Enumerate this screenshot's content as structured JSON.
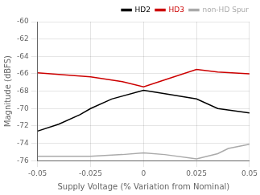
{
  "chart_data": {
    "type": "line",
    "xlabel": "Supply Voltage (% Variation from Nominal)",
    "ylabel": "Magnitude (dBFS)",
    "series": [
      {
        "name": "HD2",
        "color": "#000000",
        "x": [
          -0.05,
          -0.04,
          -0.03,
          -0.025,
          -0.015,
          0.0,
          0.01,
          0.025,
          0.035,
          0.05
        ],
        "values": [
          -72.6,
          -71.8,
          -70.7,
          -70.0,
          -68.9,
          -67.9,
          -68.3,
          -68.9,
          -70.0,
          -70.5
        ]
      },
      {
        "name": "HD3",
        "color": "#cc0000",
        "x": [
          -0.05,
          -0.025,
          -0.01,
          0.0,
          0.01,
          0.025,
          0.035,
          0.05
        ],
        "values": [
          -65.9,
          -66.35,
          -66.9,
          -67.5,
          -66.7,
          -65.5,
          -65.8,
          -66.0
        ]
      },
      {
        "name": "non-HD Spur",
        "color": "#aaaaaa",
        "x": [
          -0.05,
          -0.04,
          -0.025,
          -0.01,
          0.0,
          0.01,
          0.025,
          0.035,
          0.04,
          0.05
        ],
        "values": [
          -75.5,
          -75.5,
          -75.5,
          -75.3,
          -75.1,
          -75.3,
          -75.8,
          -75.2,
          -74.6,
          -74.1
        ]
      }
    ],
    "xlim": [
      -0.05,
      0.05
    ],
    "xticks": [
      -0.05,
      -0.025,
      0,
      0.025,
      0.05
    ],
    "ylim": [
      -76,
      -60
    ],
    "yticks": [
      -76,
      -74,
      -72,
      -70,
      -68,
      -66,
      -64,
      -62,
      -60
    ],
    "grid": true,
    "legend": "upper right"
  }
}
